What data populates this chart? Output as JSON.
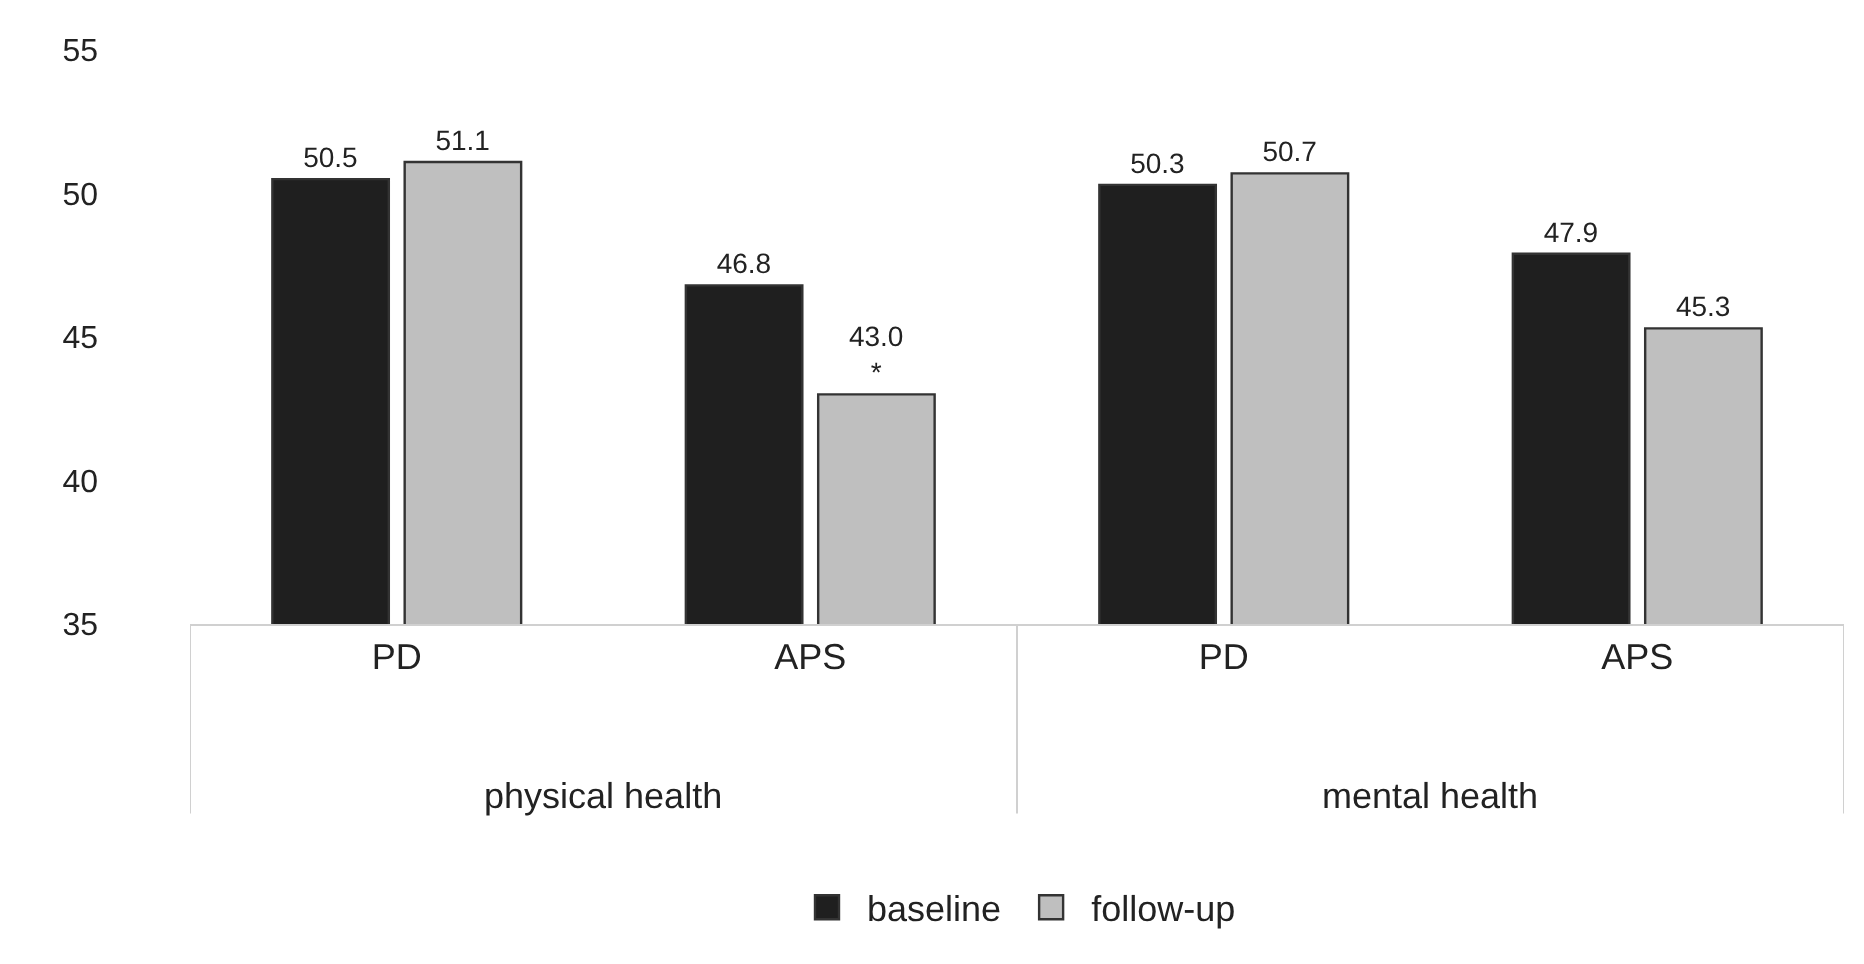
{
  "chart_data": {
    "type": "bar",
    "categories": [
      "PD",
      "APS",
      "PD",
      "APS"
    ],
    "series": [
      {
        "name": "baseline",
        "color": "#1f1f1f",
        "values": [
          50.5,
          46.8,
          50.3,
          47.9
        ],
        "value_labels": [
          "50.5",
          "46.8",
          "50.3",
          "47.9"
        ]
      },
      {
        "name": "follow-up",
        "color": "#bfbfbf",
        "values": [
          51.1,
          43.0,
          50.7,
          45.3
        ],
        "value_labels": [
          "51.1",
          "43.0\n*",
          "50.7",
          "45.3"
        ]
      }
    ],
    "annotations": [
      "physical health",
      "mental health"
    ],
    "ylim": [
      35,
      55
    ],
    "yticks": [
      35,
      40,
      45,
      50,
      55
    ],
    "legend": "bottom"
  }
}
